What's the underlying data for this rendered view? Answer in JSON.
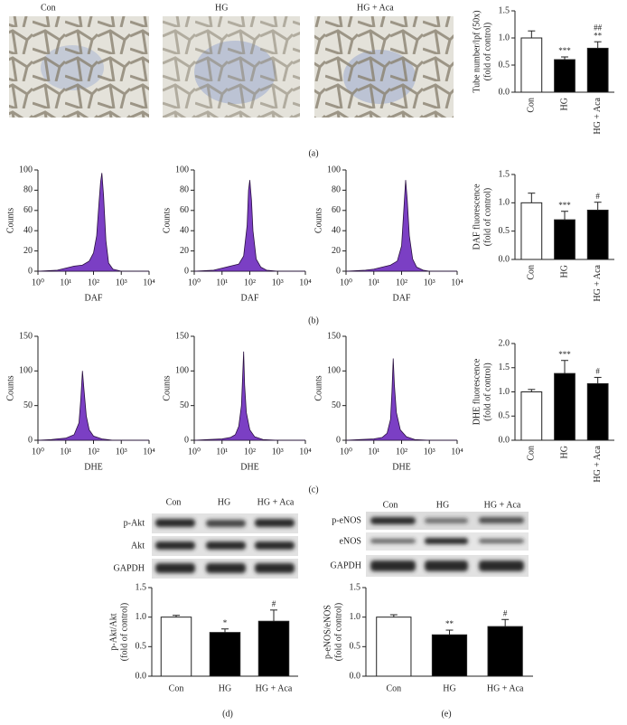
{
  "panel_labels": [
    "(a)",
    "(b)",
    "(c)",
    "(d)",
    "(e)"
  ],
  "micrographs": {
    "labels": [
      "Con",
      "HG",
      "HG + Aca"
    ]
  },
  "blots": [
    {
      "columns": [
        "Con",
        "HG",
        "HG + Aca"
      ],
      "rows": [
        "p-Akt",
        "Akt",
        "GAPDH"
      ]
    },
    {
      "columns": [
        "Con",
        "HG",
        "HG + Aca"
      ],
      "rows": [
        "p-eNOS",
        "eNOS",
        "GAPDH"
      ]
    }
  ],
  "chart_data": [
    {
      "type": "bar",
      "y_label": [
        "Tube number/lpf (50x)",
        "(fold of control)"
      ],
      "categories": [
        "Con",
        "HG",
        "HG + Aca"
      ],
      "values": [
        1.0,
        0.6,
        0.81
      ],
      "errors": [
        0.13,
        0.05,
        0.12
      ],
      "colors": [
        "#ffffff",
        "#000000",
        "#000000"
      ],
      "annotations": [
        {
          "index": 1,
          "text": "***"
        },
        {
          "index": 2,
          "text": "**"
        },
        {
          "index": 2,
          "text": "##"
        }
      ],
      "ylim": [
        0,
        1.5
      ],
      "yticks": [
        {
          "value": 0,
          "label": "0.0"
        },
        0.5,
        {
          "value": 1,
          "label": "1.0"
        },
        1.5
      ]
    },
    {
      "type": "area",
      "x_label": "DAF",
      "y_label": "Counts",
      "color": "#7b3fc4",
      "log_x": true,
      "x": [
        1,
        5,
        10,
        20,
        40,
        70,
        100,
        130,
        160,
        180,
        200,
        230,
        280,
        350,
        500,
        1000,
        10000
      ],
      "values": [
        0,
        1,
        3,
        5,
        6,
        10,
        18,
        35,
        70,
        88,
        97,
        75,
        30,
        8,
        2,
        0,
        0
      ],
      "xlim": [
        1,
        10000
      ],
      "xticks": [
        {
          "value": 1,
          "label": "10⁰"
        },
        {
          "value": 10,
          "label": "10¹"
        },
        {
          "value": 100,
          "label": "10²"
        },
        {
          "value": 1000,
          "label": "10³"
        },
        {
          "value": 10000,
          "label": "10⁴"
        }
      ],
      "ylim": [
        0,
        100
      ],
      "yticks": [
        0,
        20,
        40,
        60,
        80,
        100
      ]
    },
    {
      "type": "area",
      "x_label": "DAF",
      "y_label": "Counts",
      "color": "#7b3fc4",
      "log_x": true,
      "x": [
        1,
        5,
        10,
        20,
        40,
        60,
        80,
        90,
        100,
        115,
        130,
        170,
        250,
        400,
        1000,
        10000
      ],
      "values": [
        0,
        1,
        3,
        5,
        7,
        15,
        45,
        80,
        90,
        70,
        40,
        12,
        4,
        1,
        0,
        0
      ],
      "xlim": [
        1,
        10000
      ],
      "xticks": [
        {
          "value": 1,
          "label": "10⁰"
        },
        {
          "value": 10,
          "label": "10¹"
        },
        {
          "value": 100,
          "label": "10²"
        },
        {
          "value": 1000,
          "label": "10³"
        },
        {
          "value": 10000,
          "label": "10⁴"
        }
      ],
      "ylim": [
        0,
        100
      ],
      "yticks": [
        0,
        20,
        40,
        60,
        80,
        100
      ]
    },
    {
      "type": "area",
      "x_label": "DAF",
      "y_label": "Counts",
      "color": "#7b3fc4",
      "log_x": true,
      "x": [
        1,
        5,
        10,
        20,
        40,
        70,
        100,
        120,
        140,
        160,
        190,
        250,
        350,
        600,
        1000,
        10000
      ],
      "values": [
        0,
        1,
        2,
        4,
        6,
        10,
        25,
        60,
        90,
        70,
        35,
        12,
        4,
        1,
        0,
        0
      ],
      "xlim": [
        1,
        10000
      ],
      "xticks": [
        {
          "value": 1,
          "label": "10⁰"
        },
        {
          "value": 10,
          "label": "10¹"
        },
        {
          "value": 100,
          "label": "10²"
        },
        {
          "value": 1000,
          "label": "10³"
        },
        {
          "value": 10000,
          "label": "10⁴"
        }
      ],
      "ylim": [
        0,
        100
      ],
      "yticks": [
        0,
        20,
        40,
        60,
        80,
        100
      ]
    },
    {
      "type": "bar",
      "y_label": [
        "DAF fluorescence",
        "(fold of control)"
      ],
      "categories": [
        "Con",
        "HG",
        "HG + Aca"
      ],
      "values": [
        1.0,
        0.7,
        0.87
      ],
      "errors": [
        0.17,
        0.15,
        0.14
      ],
      "colors": [
        "#ffffff",
        "#000000",
        "#000000"
      ],
      "annotations": [
        {
          "index": 1,
          "text": "***"
        },
        {
          "index": 2,
          "text": "#"
        }
      ],
      "ylim": [
        0,
        1.5
      ],
      "yticks": [
        {
          "value": 0,
          "label": "0.0"
        },
        0.5,
        {
          "value": 1,
          "label": "1.0"
        },
        1.5
      ]
    },
    {
      "type": "area",
      "x_label": "DHE",
      "y_label": "Counts",
      "color": "#7b3fc4",
      "log_x": true,
      "x": [
        1,
        3,
        5,
        10,
        20,
        30,
        35,
        40,
        45,
        55,
        70,
        100,
        200,
        500,
        10000
      ],
      "values": [
        0,
        1,
        2,
        3,
        8,
        25,
        60,
        100,
        75,
        35,
        15,
        6,
        2,
        0,
        0
      ],
      "xlim": [
        1,
        10000
      ],
      "xticks": [
        {
          "value": 1,
          "label": "10⁰"
        },
        {
          "value": 10,
          "label": "10¹"
        },
        {
          "value": 100,
          "label": "10²"
        },
        {
          "value": 1000,
          "label": "10³"
        },
        {
          "value": 10000,
          "label": "10⁴"
        }
      ],
      "ylim": [
        0,
        150
      ],
      "yticks": [
        0,
        50,
        100,
        150
      ]
    },
    {
      "type": "area",
      "x_label": "DHE",
      "y_label": "Counts",
      "color": "#7b3fc4",
      "log_x": true,
      "x": [
        1,
        3,
        10,
        20,
        30,
        40,
        50,
        55,
        60,
        65,
        75,
        100,
        150,
        300,
        1000,
        10000
      ],
      "values": [
        0,
        1,
        2,
        4,
        8,
        20,
        50,
        90,
        128,
        80,
        40,
        15,
        5,
        1,
        0,
        0
      ],
      "xlim": [
        1,
        10000
      ],
      "xticks": [
        {
          "value": 1,
          "label": "10⁰"
        },
        {
          "value": 10,
          "label": "10¹"
        },
        {
          "value": 100,
          "label": "10²"
        },
        {
          "value": 1000,
          "label": "10³"
        },
        {
          "value": 10000,
          "label": "10⁴"
        }
      ],
      "ylim": [
        0,
        150
      ],
      "yticks": [
        0,
        50,
        100,
        150
      ]
    },
    {
      "type": "area",
      "x_label": "DHE",
      "y_label": "Counts",
      "color": "#7b3fc4",
      "log_x": true,
      "x": [
        1,
        3,
        10,
        20,
        30,
        40,
        45,
        50,
        55,
        65,
        90,
        150,
        300,
        1000,
        10000
      ],
      "values": [
        0,
        1,
        2,
        4,
        10,
        30,
        70,
        118,
        80,
        40,
        15,
        5,
        1,
        0,
        0
      ],
      "xlim": [
        1,
        10000
      ],
      "xticks": [
        {
          "value": 1,
          "label": "10⁰"
        },
        {
          "value": 10,
          "label": "10¹"
        },
        {
          "value": 100,
          "label": "10²"
        },
        {
          "value": 1000,
          "label": "10³"
        },
        {
          "value": 10000,
          "label": "10⁴"
        }
      ],
      "ylim": [
        0,
        150
      ],
      "yticks": [
        0,
        50,
        100,
        150
      ]
    },
    {
      "type": "bar",
      "y_label": [
        "DHE fluorescence",
        "(fold of control)"
      ],
      "categories": [
        "Con",
        "HG",
        "HG + Aca"
      ],
      "values": [
        1.0,
        1.38,
        1.17
      ],
      "errors": [
        0.05,
        0.27,
        0.13
      ],
      "colors": [
        "#ffffff",
        "#000000",
        "#000000"
      ],
      "annotations": [
        {
          "index": 1,
          "text": "***"
        },
        {
          "index": 2,
          "text": "#"
        }
      ],
      "ylim": [
        0,
        2
      ],
      "yticks": [
        {
          "value": 0,
          "label": "0.0"
        },
        0.5,
        {
          "value": 1,
          "label": "1.0"
        },
        1.5,
        {
          "value": 2,
          "label": "2.0"
        }
      ]
    },
    {
      "type": "bar",
      "y_label": [
        "p-Akt/Akt",
        "(fold of control)"
      ],
      "categories": [
        "Con",
        "HG",
        "HG + Aca"
      ],
      "values": [
        1.0,
        0.74,
        0.93
      ],
      "errors": [
        0.03,
        0.06,
        0.19
      ],
      "colors": [
        "#ffffff",
        "#000000",
        "#000000"
      ],
      "annotations": [
        {
          "index": 1,
          "text": "*"
        },
        {
          "index": 2,
          "text": "#"
        }
      ],
      "ylim": [
        0,
        1.5
      ],
      "yticks": [
        {
          "value": 0,
          "label": "0.0"
        },
        0.5,
        {
          "value": 1,
          "label": "1.0"
        },
        1.5
      ]
    },
    {
      "type": "bar",
      "y_label": [
        "p-eNOS/eNOS",
        "(fold of control)"
      ],
      "categories": [
        "Con",
        "HG",
        "HG + Aca"
      ],
      "values": [
        1.0,
        0.7,
        0.84
      ],
      "errors": [
        0.04,
        0.08,
        0.12
      ],
      "colors": [
        "#ffffff",
        "#000000",
        "#000000"
      ],
      "annotations": [
        {
          "index": 1,
          "text": "**"
        },
        {
          "index": 2,
          "text": "#"
        }
      ],
      "ylim": [
        0,
        1.5
      ],
      "yticks": [
        {
          "value": 0,
          "label": "0.0"
        },
        0.5,
        {
          "value": 1,
          "label": "1.0"
        },
        1.5
      ]
    }
  ]
}
